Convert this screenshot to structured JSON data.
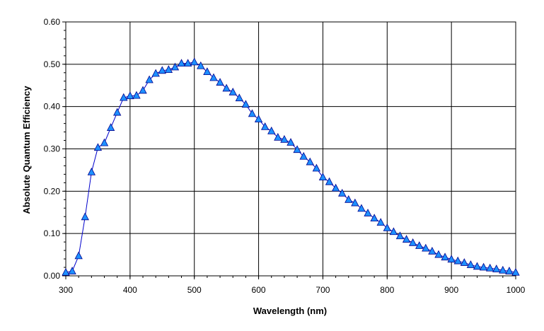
{
  "chart_data": {
    "type": "line",
    "title": "",
    "xlabel": "Wavelength (nm)",
    "ylabel": "Absolute Quantum Efficiency",
    "xlim": [
      300,
      1000
    ],
    "ylim": [
      0,
      0.6
    ],
    "x_ticks": [
      "300",
      "400",
      "500",
      "600",
      "700",
      "800",
      "900",
      "1000"
    ],
    "y_ticks": [
      "0.00",
      "0.10",
      "0.20",
      "0.30",
      "0.40",
      "0.50",
      "0.60"
    ],
    "grid": true,
    "legend": "none",
    "series": [
      {
        "marker": "triangle",
        "color": "#1E90FF",
        "line_color": "#0000CC",
        "x": [
          300,
          310,
          320,
          330,
          340,
          350,
          360,
          370,
          380,
          390,
          400,
          410,
          420,
          430,
          440,
          450,
          460,
          470,
          480,
          490,
          500,
          510,
          520,
          530,
          540,
          550,
          560,
          570,
          580,
          590,
          600,
          610,
          620,
          630,
          640,
          650,
          660,
          670,
          680,
          690,
          700,
          710,
          720,
          730,
          740,
          750,
          760,
          770,
          780,
          790,
          800,
          810,
          820,
          830,
          840,
          850,
          860,
          870,
          880,
          890,
          900,
          910,
          920,
          930,
          940,
          950,
          960,
          970,
          980,
          990,
          1000
        ],
        "values": [
          0.008,
          0.011,
          0.047,
          0.139,
          0.245,
          0.303,
          0.314,
          0.35,
          0.386,
          0.421,
          0.425,
          0.426,
          0.438,
          0.463,
          0.478,
          0.485,
          0.487,
          0.493,
          0.502,
          0.502,
          0.505,
          0.496,
          0.482,
          0.468,
          0.457,
          0.443,
          0.434,
          0.42,
          0.405,
          0.383,
          0.37,
          0.352,
          0.342,
          0.327,
          0.322,
          0.315,
          0.298,
          0.282,
          0.269,
          0.254,
          0.233,
          0.222,
          0.207,
          0.195,
          0.18,
          0.172,
          0.159,
          0.148,
          0.136,
          0.126,
          0.113,
          0.104,
          0.094,
          0.086,
          0.078,
          0.071,
          0.065,
          0.058,
          0.05,
          0.044,
          0.039,
          0.035,
          0.031,
          0.026,
          0.022,
          0.02,
          0.018,
          0.016,
          0.013,
          0.011,
          0.008
        ]
      }
    ]
  }
}
